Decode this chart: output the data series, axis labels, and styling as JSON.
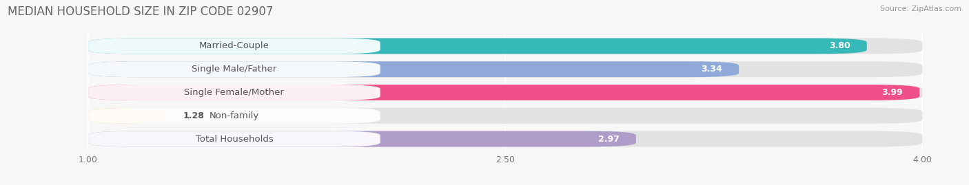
{
  "title": "MEDIAN HOUSEHOLD SIZE IN ZIP CODE 02907",
  "source": "Source: ZipAtlas.com",
  "categories": [
    "Married-Couple",
    "Single Male/Father",
    "Single Female/Mother",
    "Non-family",
    "Total Households"
  ],
  "values": [
    3.8,
    3.34,
    3.99,
    1.28,
    2.97
  ],
  "bar_colors": [
    "#36b8b8",
    "#8faad8",
    "#f0508a",
    "#f5c897",
    "#b09cc8"
  ],
  "xlim_data": [
    1.0,
    4.0
  ],
  "xlim_plot": [
    0.7,
    4.15
  ],
  "xticks": [
    1.0,
    2.5,
    4.0
  ],
  "xtick_labels": [
    "1.00",
    "2.50",
    "4.00"
  ],
  "background_color": "#f7f7f7",
  "bar_background_color": "#e2e2e2",
  "title_fontsize": 12,
  "label_fontsize": 9.5,
  "value_fontsize": 9
}
